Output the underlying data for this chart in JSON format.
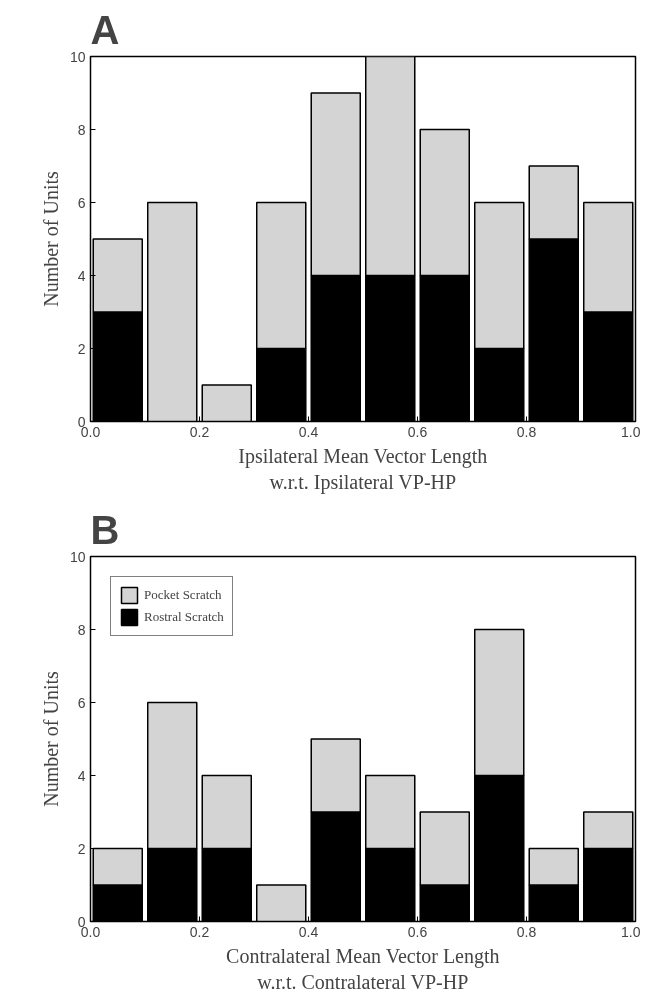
{
  "chart_data": [
    {
      "type": "bar",
      "title": "A",
      "xlabel": "Ipsilateral Mean Vector Length\nw.r.t. Ipsilateral VP-HP",
      "ylabel": "Number of Units",
      "stacked": true,
      "x": [
        0.05,
        0.15,
        0.25,
        0.35,
        0.45,
        0.55,
        0.65,
        0.75,
        0.85,
        0.95
      ],
      "series": [
        {
          "color": "#000000",
          "values": [
            3,
            0,
            0,
            2,
            4,
            4,
            4,
            2,
            5,
            3
          ]
        },
        {
          "color": "#d4d4d4",
          "values": [
            2,
            6,
            1,
            4,
            5,
            6,
            4,
            4,
            2,
            3
          ]
        }
      ],
      "xlim": [
        0,
        1
      ],
      "ylim": [
        0,
        10
      ],
      "xticks": [
        {
          "value": 0,
          "label": "0.0"
        },
        {
          "value": 0.2,
          "label": "0.2"
        },
        {
          "value": 0.4,
          "label": "0.4"
        },
        {
          "value": 0.6,
          "label": "0.6"
        },
        {
          "value": 0.8,
          "label": "0.8"
        },
        {
          "value": 1,
          "label": "1.0"
        }
      ],
      "yticks": [
        0,
        2,
        4,
        6,
        8,
        10
      ],
      "grid": false,
      "legend": false
    },
    {
      "type": "bar",
      "title": "B",
      "xlabel": "Contralateral Mean Vector Length\nw.r.t. Contralateral VP-HP",
      "ylabel": "Number of Units",
      "stacked": true,
      "x": [
        0.05,
        0.15,
        0.25,
        0.35,
        0.45,
        0.55,
        0.65,
        0.75,
        0.85,
        0.95
      ],
      "series": [
        {
          "name": "Rostral Scratch",
          "color": "#000000",
          "values": [
            1,
            2,
            2,
            0,
            3,
            2,
            1,
            4,
            1,
            2
          ]
        },
        {
          "name": "Pocket Scratch",
          "color": "#d4d4d4",
          "values": [
            1,
            4,
            2,
            1,
            2,
            2,
            2,
            4,
            1,
            1
          ]
        }
      ],
      "xlim": [
        0,
        1
      ],
      "ylim": [
        0,
        10
      ],
      "xticks": [
        {
          "value": 0,
          "label": "0.0"
        },
        {
          "value": 0.2,
          "label": "0.2"
        },
        {
          "value": 0.4,
          "label": "0.4"
        },
        {
          "value": 0.6,
          "label": "0.6"
        },
        {
          "value": 0.8,
          "label": "0.8"
        },
        {
          "value": 1,
          "label": "1.0"
        }
      ],
      "yticks": [
        0,
        2,
        4,
        6,
        8,
        10
      ],
      "grid": false,
      "legend": "top left"
    }
  ]
}
